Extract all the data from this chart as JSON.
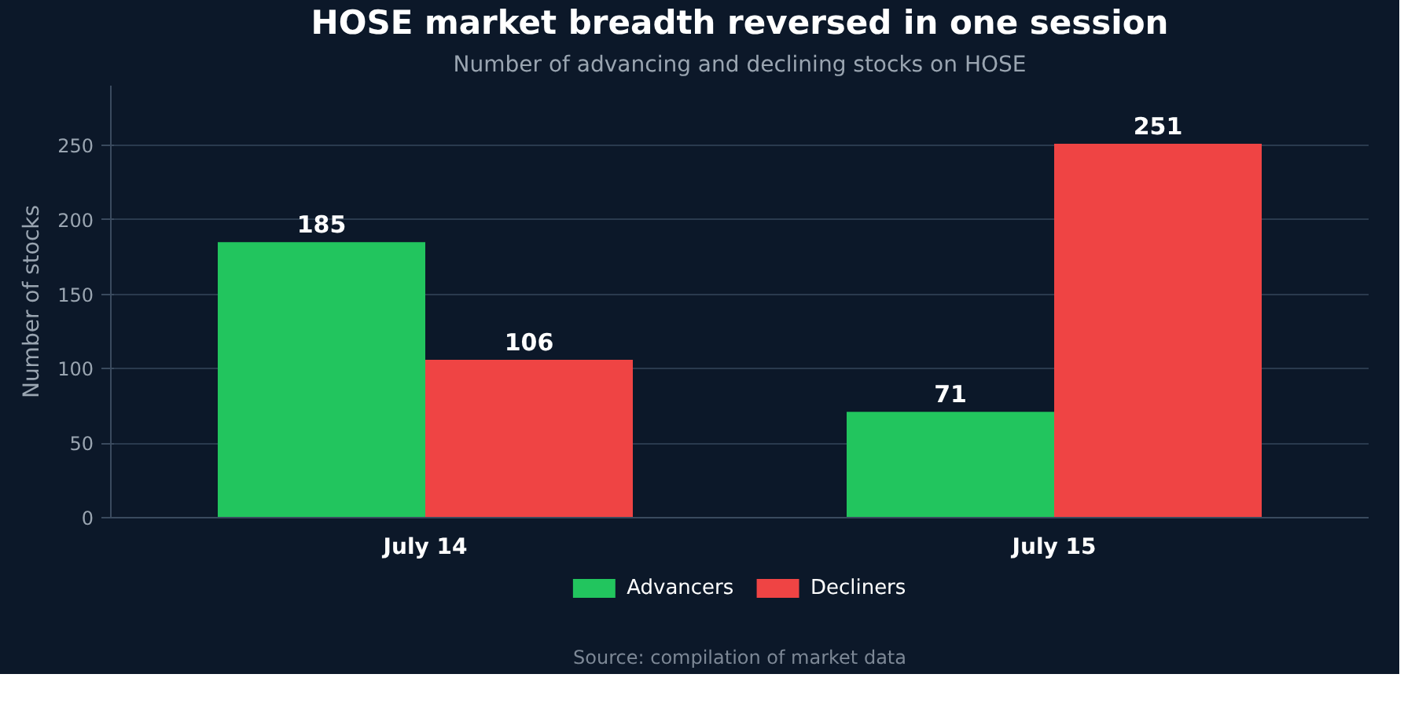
{
  "chart_data": {
    "type": "bar",
    "title": "HOSE market breadth reversed in one session",
    "subtitle": "Number of advancing and declining stocks on HOSE",
    "ylabel": "Number of stocks",
    "annotations": [
      "Source: compilation of market data"
    ],
    "categories": [
      "July 14",
      "July 15"
    ],
    "series": [
      {
        "name": "Advancers",
        "color": "#22c55e",
        "values": [
          185,
          71
        ]
      },
      {
        "name": "Decliners",
        "color": "#ef4444",
        "values": [
          106,
          251
        ]
      }
    ],
    "ylim": [
      0,
      290
    ],
    "yticks": [
      0,
      50,
      100,
      150,
      200,
      250
    ],
    "grid": "y",
    "legend": "bottom",
    "data_labels": true
  }
}
